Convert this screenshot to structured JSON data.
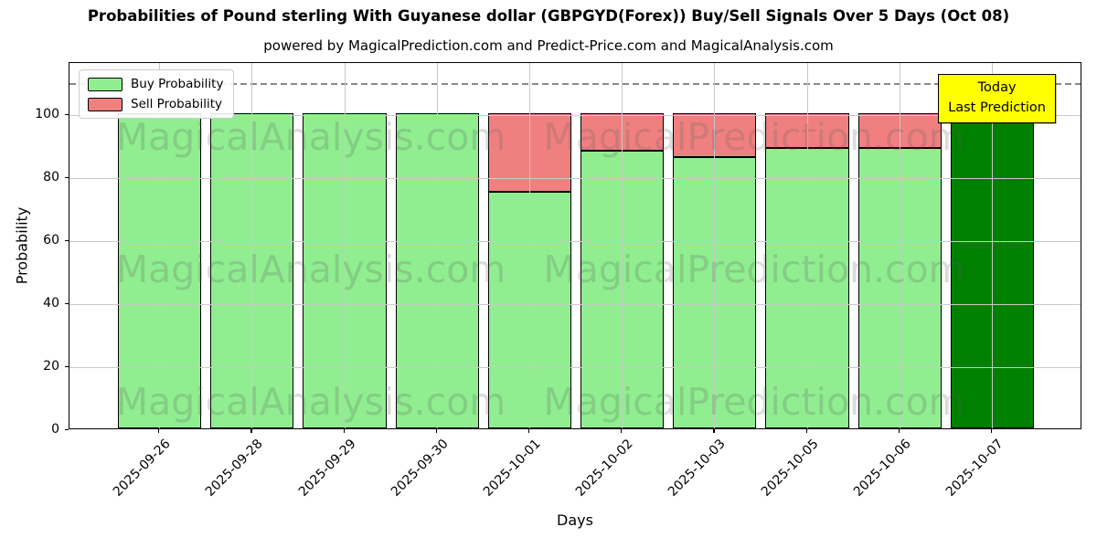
{
  "title": "Probabilities of Pound sterling With Guyanese dollar (GBPGYD(Forex)) Buy/Sell Signals Over 5 Days (Oct 08)",
  "subtitle": "powered by MagicalPrediction.com and Predict-Price.com and MagicalAnalysis.com",
  "legend": {
    "buy_label": "Buy Probability",
    "sell_label": "Sell Probability"
  },
  "annotation": {
    "line1": "Today",
    "line2": "Last Prediction"
  },
  "watermarks": [
    "MagicalAnalysis.com",
    "MagicalPrediction.com"
  ],
  "axes": {
    "xlabel": "Days",
    "ylabel": "Probability",
    "yticks": [
      0,
      20,
      40,
      60,
      80,
      100
    ],
    "ylim": [
      0,
      116.5
    ],
    "dashed_line_y": 110
  },
  "colors": {
    "buy": "#90EE90",
    "sell": "#F08080",
    "today_bar": "#008000",
    "annotation_bg": "#FFFF00",
    "grid": "#c9c9c9"
  },
  "chart_data": {
    "type": "bar",
    "stacked": true,
    "title": "Probabilities of Pound sterling With Guyanese dollar (GBPGYD(Forex)) Buy/Sell Signals Over 5 Days (Oct 08)",
    "xlabel": "Days",
    "ylabel": "Probability",
    "ylim": [
      0,
      116.5
    ],
    "grid": true,
    "legend_position": "upper-left",
    "categories": [
      "2025-09-26",
      "2025-09-28",
      "2025-09-29",
      "2025-09-30",
      "2025-10-01",
      "2025-10-02",
      "2025-10-03",
      "2025-10-05",
      "2025-10-06",
      "2025-10-07"
    ],
    "series": [
      {
        "name": "Buy Probability",
        "color": "#90EE90",
        "values": [
          100,
          100,
          100,
          100,
          75,
          88,
          86,
          89,
          89,
          100
        ]
      },
      {
        "name": "Sell Probability",
        "color": "#F08080",
        "values": [
          0,
          0,
          0,
          0,
          25,
          12,
          14,
          11,
          11,
          0
        ]
      }
    ],
    "today_index": 9,
    "today_note": "Today / Last Prediction shown as dark green bar"
  }
}
